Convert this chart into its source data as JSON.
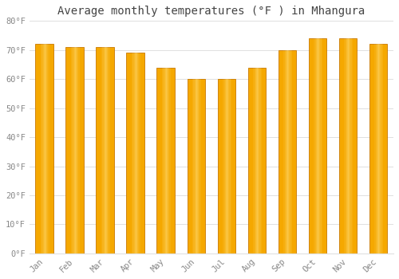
{
  "title": "Average monthly temperatures (°F ) in Mhangura",
  "months": [
    "Jan",
    "Feb",
    "Mar",
    "Apr",
    "May",
    "Jun",
    "Jul",
    "Aug",
    "Sep",
    "Oct",
    "Nov",
    "Dec"
  ],
  "values": [
    72,
    71,
    71,
    69,
    64,
    60,
    60,
    64,
    70,
    74,
    74,
    72
  ],
  "bar_color_light": "#FFD966",
  "bar_color_dark": "#F5A800",
  "bar_edge_color": "#C87800",
  "background_color": "#FFFFFF",
  "grid_color": "#E0E0E0",
  "ylim": [
    0,
    80
  ],
  "yticks": [
    0,
    10,
    20,
    30,
    40,
    50,
    60,
    70,
    80
  ],
  "ytick_labels": [
    "0°F",
    "10°F",
    "20°F",
    "30°F",
    "40°F",
    "50°F",
    "60°F",
    "70°F",
    "80°F"
  ],
  "title_fontsize": 10,
  "tick_fontsize": 7.5,
  "title_color": "#444444",
  "tick_color": "#888888",
  "font_family": "monospace",
  "bar_width": 0.6
}
